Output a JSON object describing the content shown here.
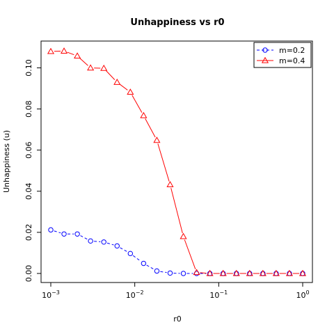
{
  "chart_data": {
    "type": "line",
    "title": "Unhappiness vs r0",
    "xlabel": "r0",
    "ylabel": "Unhappiness (u)",
    "x_scale": "log10",
    "xlim": [
      0.001,
      1
    ],
    "ylim": [
      0,
      0.11
    ],
    "x_ticks": [
      {
        "value": 0.001,
        "base": "10",
        "exp": "−3"
      },
      {
        "value": 0.01,
        "base": "10",
        "exp": "−2"
      },
      {
        "value": 0.1,
        "base": "10",
        "exp": "−1"
      },
      {
        "value": 1,
        "base": "10",
        "exp": "0"
      }
    ],
    "y_ticks": [
      {
        "value": 0.0,
        "label": "0.00"
      },
      {
        "value": 0.02,
        "label": "0.02"
      },
      {
        "value": 0.04,
        "label": "0.04"
      },
      {
        "value": 0.06,
        "label": "0.06"
      },
      {
        "value": 0.08,
        "label": "0.08"
      },
      {
        "value": 0.1,
        "label": "0.10"
      }
    ],
    "x": [
      0.001,
      0.001438,
      0.002069,
      0.002976,
      0.004281,
      0.006158,
      0.008859,
      0.012743,
      0.01833,
      0.026367,
      0.037927,
      0.054556,
      0.078476,
      0.112884,
      0.162378,
      0.233572,
      0.335982,
      0.483293,
      0.695193,
      1.0
    ],
    "series": [
      {
        "name": "m=0.2",
        "color": "#0000ff",
        "marker": "circle",
        "line": "dashed",
        "values": [
          0.0212,
          0.0192,
          0.0192,
          0.0158,
          0.0153,
          0.0134,
          0.0097,
          0.0049,
          0.0012,
          0.0002,
          0.0,
          0.0,
          0.0,
          0.0,
          0.0,
          0.0,
          0.0,
          0.0,
          0.0,
          0.0
        ]
      },
      {
        "name": "m=0.4",
        "color": "#ff0000",
        "marker": "triangle",
        "line": "solid",
        "values": [
          0.108,
          0.1082,
          0.1058,
          0.1,
          0.0998,
          0.093,
          0.0882,
          0.0768,
          0.0648,
          0.0432,
          0.018,
          0.0005,
          0.0,
          0.0,
          0.0,
          0.0,
          0.0,
          0.0,
          0.0,
          0.0
        ]
      }
    ],
    "legend_position": "top-right",
    "grid": false
  }
}
